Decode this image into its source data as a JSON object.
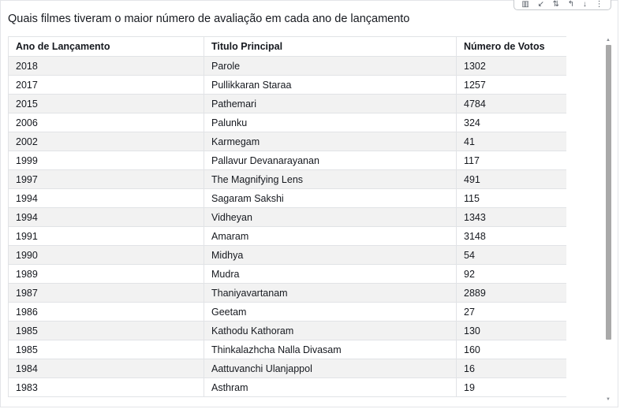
{
  "visual": {
    "title": "Quais filmes tiveram o maior número de avaliação em cada ano de lançamento",
    "toolbar_icons": [
      "bar-chart-icon",
      "collapse-icon",
      "sort-icon",
      "drill-up-icon",
      "drill-down-icon",
      "more-options-icon"
    ]
  },
  "table": {
    "headers": [
      "Ano de Lançamento",
      "Titulo Principal",
      "Número de Votos"
    ],
    "rows": [
      [
        "2018",
        "Parole",
        "1302"
      ],
      [
        "2017",
        "Pullikkaran Staraa",
        "1257"
      ],
      [
        "2015",
        "Pathemari",
        "4784"
      ],
      [
        "2006",
        "Palunku",
        "324"
      ],
      [
        "2002",
        "Karmegam",
        "41"
      ],
      [
        "1999",
        "Pallavur Devanarayanan",
        "117"
      ],
      [
        "1997",
        "The Magnifying Lens",
        "491"
      ],
      [
        "1994",
        "Sagaram Sakshi",
        "115"
      ],
      [
        "1994",
        "Vidheyan",
        "1343"
      ],
      [
        "1991",
        "Amaram",
        "3148"
      ],
      [
        "1990",
        "Midhya",
        "54"
      ],
      [
        "1989",
        "Mudra",
        "92"
      ],
      [
        "1987",
        "Thaniyavartanam",
        "2889"
      ],
      [
        "1986",
        "Geetam",
        "27"
      ],
      [
        "1985",
        "Kathodu Kathoram",
        "130"
      ],
      [
        "1985",
        "Thinkalazhcha Nalla Divasam",
        "160"
      ],
      [
        "1984",
        "Aattuvanchi Ulanjappol",
        "16"
      ],
      [
        "1983",
        "Asthram",
        "19"
      ]
    ]
  },
  "colors": {
    "row_alt": "#f2f2f2",
    "border": "#e1e3e6",
    "scroll_thumb": "#a9a9a9"
  }
}
